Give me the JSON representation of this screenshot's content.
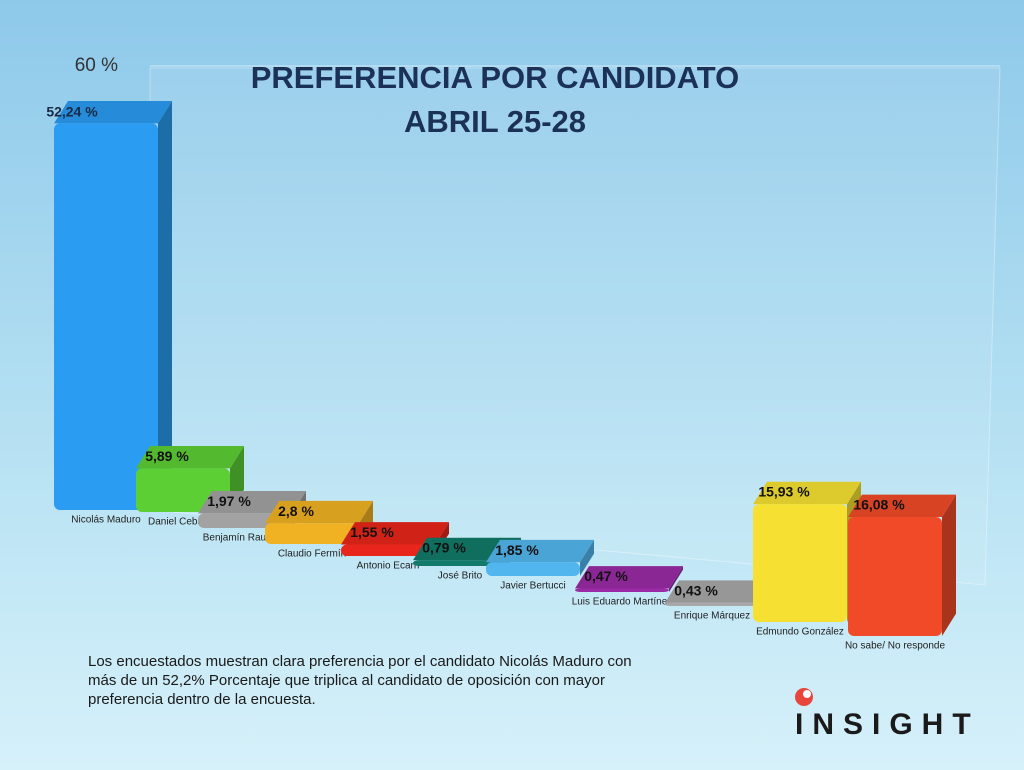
{
  "chart_data": {
    "type": "bar3d",
    "title": [
      "PREFERENCIA POR CANDIDATO",
      "ABRIL 25-28"
    ],
    "categories": [
      "Nicolás Maduro",
      "Daniel Ceballos",
      "Benjamín Rausseu",
      "Claudio Fermín",
      "Antonio Ecarri",
      "José Brito",
      "Javier Bertucci",
      "Luis Eduardo Martínez",
      "Enrique Márquez",
      "Edmundo González",
      "No sabe/ No responde"
    ],
    "values": [
      52.24,
      5.89,
      1.97,
      2.8,
      1.55,
      0.79,
      1.85,
      0.47,
      0.43,
      15.93,
      16.08
    ],
    "value_labels": [
      "52,24 %",
      "5,89 %",
      "1,97 %",
      "2,8 %",
      "1,55 %",
      "0,79 %",
      "1,85 %",
      "0,47 %",
      "0,43 %",
      "15,93 %",
      "16,08 %"
    ],
    "colors": [
      "#2a9cf2",
      "#5ccf35",
      "#a2a2a2",
      "#f0b222",
      "#e8261b",
      "#127a6a",
      "#52b6ee",
      "#9a2aa6",
      "#a8a8a8",
      "#f6e132",
      "#f04a28"
    ],
    "ylim": [
      0,
      60
    ],
    "yticks": [
      {
        "value": 60,
        "label": "60 %"
      }
    ],
    "grid": true
  },
  "note": "Los encuestados muestran clara preferencia por el candidato Nicolás Maduro con más de un 52,2%  Porcentaje que triplica al candidato de oposición con mayor preferencia dentro de la encuesta.",
  "logo": "INSIGHT"
}
